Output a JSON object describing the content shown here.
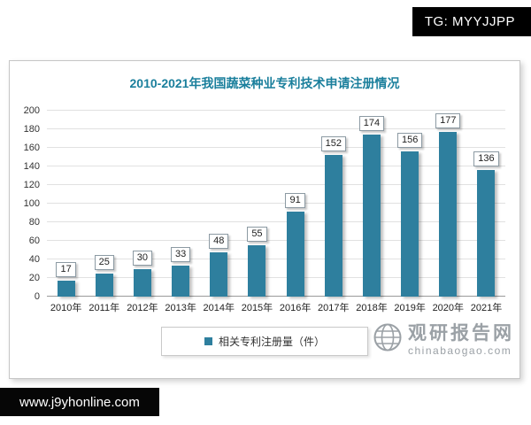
{
  "overlays": {
    "tg_badge": "TG: MYYJJPP",
    "bottom_bar_url": "www.j9yhonline.com"
  },
  "watermark": {
    "brand": "观研报告网",
    "domain": "chinabaogao.com"
  },
  "chart_data": {
    "type": "bar",
    "title": "2010-2021年我国蔬菜种业专利技术申请注册情况",
    "categories": [
      "2010年",
      "2011年",
      "2012年",
      "2013年",
      "2014年",
      "2015年",
      "2016年",
      "2017年",
      "2018年",
      "2019年",
      "2020年",
      "2021年"
    ],
    "values": [
      17,
      25,
      30,
      33,
      48,
      55,
      91,
      152,
      174,
      156,
      177,
      136
    ],
    "legend": "相关专利注册量（件）",
    "xlabel": "",
    "ylabel": "",
    "ylim": [
      0,
      200
    ],
    "yticks": [
      0,
      20,
      40,
      60,
      80,
      100,
      120,
      140,
      160,
      180,
      200
    ],
    "grid": true,
    "legend_position": "bottom",
    "bar_color": "#2e7f9e",
    "title_color": "#1a7f9c"
  }
}
